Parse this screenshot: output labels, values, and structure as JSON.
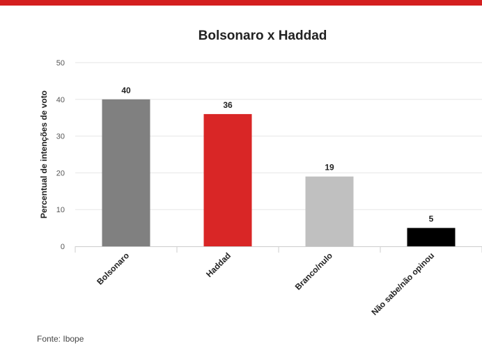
{
  "colors": {
    "top_bar": "#d41f1f",
    "grid": "#e6e6e6",
    "axis": "#cccccc"
  },
  "chart_data": {
    "type": "bar",
    "title": "Bolsonaro x Haddad",
    "xlabel": "",
    "ylabel": "Percentual de intenções de voto",
    "categories": [
      "Bolsonaro",
      "Haddad",
      "Branco/nulo",
      "Não sabe/não opinou"
    ],
    "values": [
      40,
      36,
      19,
      5
    ],
    "bar_colors": [
      "#808080",
      "#d92626",
      "#c0c0c0",
      "#000000"
    ],
    "ylim": [
      0,
      50
    ],
    "yticks": [
      0,
      10,
      20,
      30,
      40,
      50
    ],
    "grid": true,
    "data_labels": true
  },
  "footer": {
    "source": "Fonte: Ibope"
  }
}
